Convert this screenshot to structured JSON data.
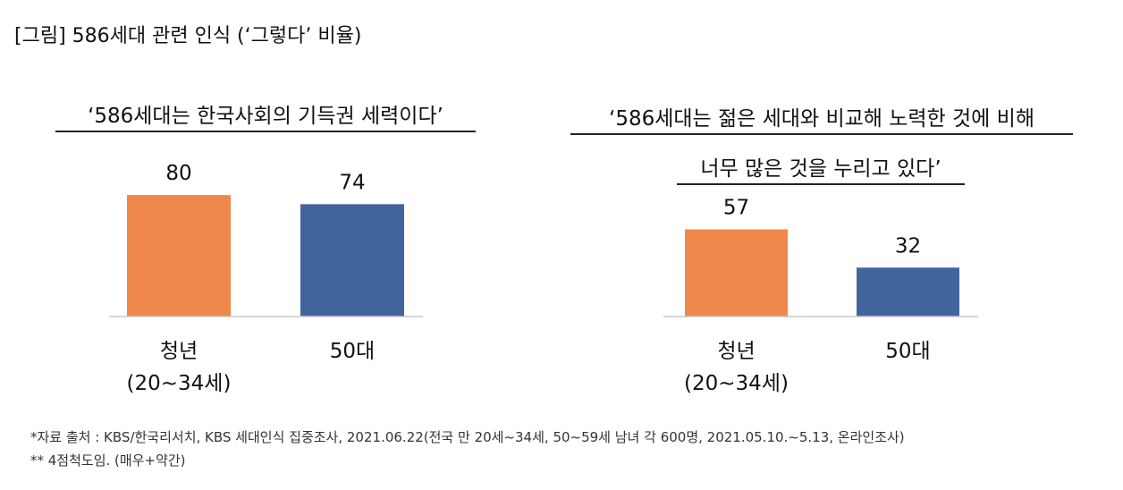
{
  "figure_title": "[그림] 586세대 관련 인식 (‘그렇다’ 비율)",
  "chart_data": [
    {
      "type": "bar",
      "title": "‘586세대는 한국사회의 기득권 세력이다’",
      "categories": [
        "청년\n(20~34세)",
        "50대"
      ],
      "values": [
        80,
        74
      ],
      "colors": [
        "#F0874A",
        "#41649D"
      ],
      "ylim": [
        0,
        100
      ],
      "grid": false,
      "legend": "none"
    },
    {
      "type": "bar",
      "title_lines": [
        "‘586세대는 젊은 세대와 비교해 노력한 것에 비해",
        "너무 많은 것을 누리고 있다’"
      ],
      "categories": [
        "청년\n(20~34세)",
        "50대"
      ],
      "values": [
        57,
        32
      ],
      "colors": [
        "#F0874A",
        "#41649D"
      ],
      "ylim": [
        0,
        100
      ],
      "grid": false,
      "legend": "none"
    }
  ],
  "footnotes": [
    "*자료 출처 : KBS/한국리서치, KBS 세대인식 집중조사, 2021.06.22(전국 만 20세~34세, 50~59세 남녀 각 600명, 2021.05.10.~5.13, 온라인조사)",
    "** 4점척도임. (매우+약간)"
  ]
}
